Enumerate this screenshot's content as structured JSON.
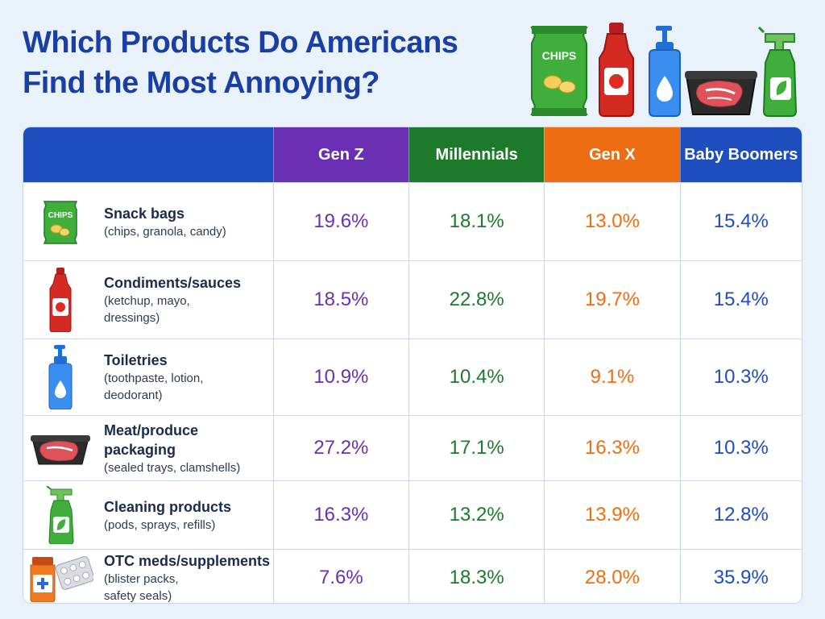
{
  "title_lines": [
    "Which Products Do Americans",
    "Find the Most Annoying?"
  ],
  "colors": {
    "gen_z": "#6a2fb3",
    "millennials": "#1c7a2a",
    "gen_x": "#ef6d12",
    "baby_boomers": "#1e4dbd",
    "header_blank": "#1e4dbd"
  },
  "chart_data": {
    "type": "table",
    "columns": [
      "Gen Z",
      "Millennials",
      "Gen X",
      "Baby Boomers"
    ],
    "rows": [
      {
        "name": "Snack bags",
        "detail": "(chips, granola, candy)",
        "icon": "chips-bag-icon",
        "values": [
          "19.6%",
          "18.1%",
          "13.0%",
          "15.4%"
        ]
      },
      {
        "name": "Condiments/sauces",
        "detail": "(ketchup, mayo,\ndressings)",
        "icon": "ketchup-bottle-icon",
        "values": [
          "18.5%",
          "22.8%",
          "19.7%",
          "15.4%"
        ]
      },
      {
        "name": "Toiletries",
        "detail": "(toothpaste, lotion,\ndeodorant)",
        "icon": "lotion-bottle-icon",
        "values": [
          "10.9%",
          "10.4%",
          "9.1%",
          "10.3%"
        ]
      },
      {
        "name": "Meat/produce packaging",
        "detail": "(sealed trays, clamshells)",
        "icon": "meat-tray-icon",
        "values": [
          "27.2%",
          "17.1%",
          "16.3%",
          "10.3%"
        ]
      },
      {
        "name": "Cleaning products",
        "detail": "(pods, sprays, refills)",
        "icon": "spray-bottle-icon",
        "values": [
          "16.3%",
          "13.2%",
          "13.9%",
          "12.8%"
        ]
      },
      {
        "name": "OTC meds/supplements",
        "detail": "(blister packs,\nsafety seals)",
        "icon": "pill-bottle-icon",
        "values": [
          "7.6%",
          "18.3%",
          "28.0%",
          "35.9%"
        ]
      }
    ]
  },
  "hero_icons": [
    "chips-bag-icon",
    "ketchup-bottle-icon",
    "lotion-bottle-icon",
    "meat-tray-icon",
    "spray-bottle-icon"
  ],
  "chips_label": "CHIPS"
}
